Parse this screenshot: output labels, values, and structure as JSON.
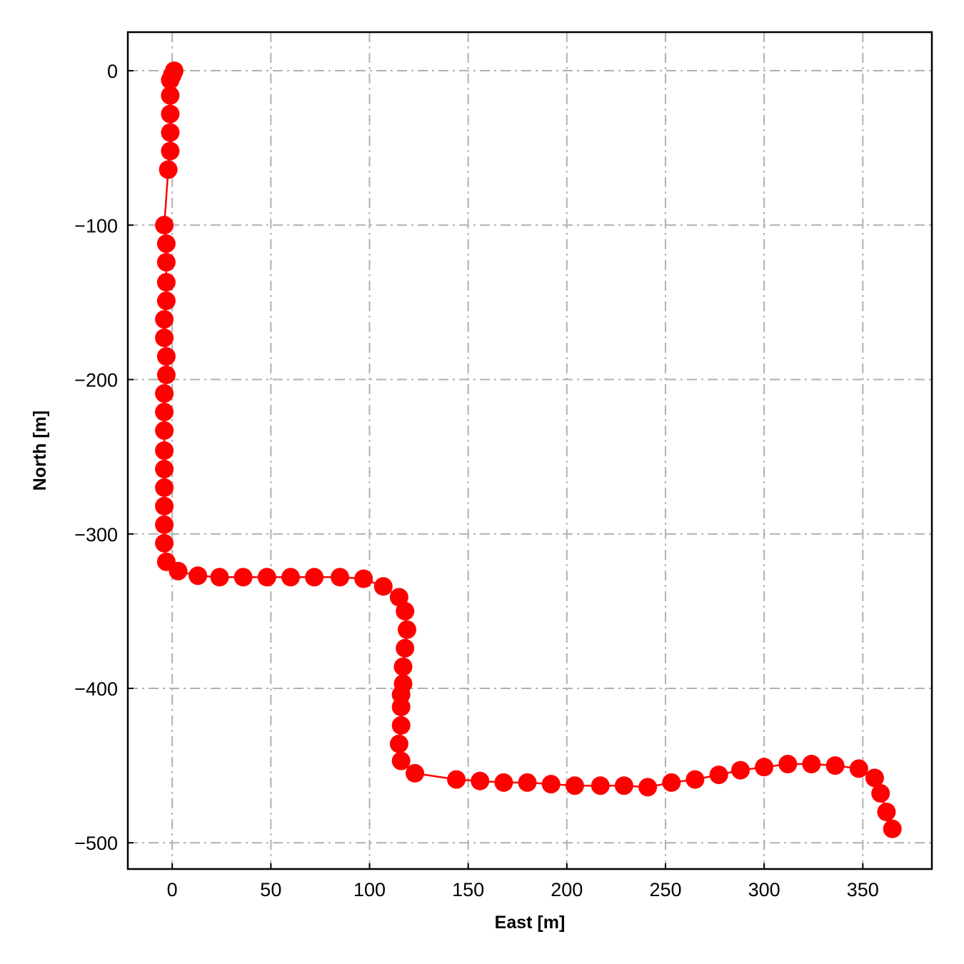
{
  "chart_data": {
    "type": "line",
    "title": "",
    "xlabel": "East [m]",
    "ylabel": "North [m]",
    "xlim": [
      -22.5,
      385
    ],
    "ylim": [
      -517,
      25
    ],
    "xticks": [
      0,
      50,
      100,
      150,
      200,
      250,
      300,
      350
    ],
    "yticks": [
      0,
      -100,
      -200,
      -300,
      -400,
      -500
    ],
    "xtick_labels": [
      "0",
      "50",
      "100",
      "150",
      "200",
      "250",
      "300",
      "350"
    ],
    "ytick_labels": [
      "0",
      "−100",
      "−200",
      "−300",
      "−400",
      "−500"
    ],
    "grid": true,
    "legend": "none",
    "colors": {
      "series": "#ff0000",
      "grid": "#b0b0b0"
    },
    "series": [
      {
        "marker": "circle",
        "x": [
          1,
          0,
          -1,
          -1,
          -1,
          -1,
          -1,
          -2,
          -4,
          -3,
          -3,
          -3,
          -3,
          -4,
          -4,
          -3,
          -3,
          -4,
          -4,
          -4,
          -4,
          -4,
          -4,
          -4,
          -4,
          -4,
          -3,
          3,
          13,
          24,
          36,
          48,
          60,
          72,
          85,
          97,
          107,
          115,
          118,
          119,
          118,
          117,
          117,
          116,
          116,
          116,
          115,
          116,
          123,
          144,
          156,
          168,
          180,
          192,
          204,
          217,
          229,
          241,
          253,
          265,
          277,
          288,
          300,
          312,
          324,
          336,
          348,
          356,
          359,
          362,
          365
        ],
        "y": [
          0,
          -3,
          -6,
          -16,
          -28,
          -40,
          -52,
          -64,
          -100,
          -112,
          -124,
          -137,
          -149,
          -161,
          -173,
          -185,
          -197,
          -209,
          -221,
          -233,
          -246,
          -258,
          -270,
          -282,
          -294,
          -306,
          -318,
          -324,
          -327,
          -328,
          -328,
          -328,
          -328,
          -328,
          -328,
          -329,
          -334,
          -341,
          -350,
          -362,
          -374,
          -386,
          -397,
          -404,
          -412,
          -424,
          -436,
          -447,
          -455,
          -459,
          -460,
          -461,
          -461,
          -462,
          -463,
          -463,
          -463,
          -464,
          -461,
          -459,
          -456,
          -453,
          -451,
          -449,
          -449,
          -450,
          -452,
          -458,
          -468,
          -480,
          -491
        ]
      }
    ]
  }
}
